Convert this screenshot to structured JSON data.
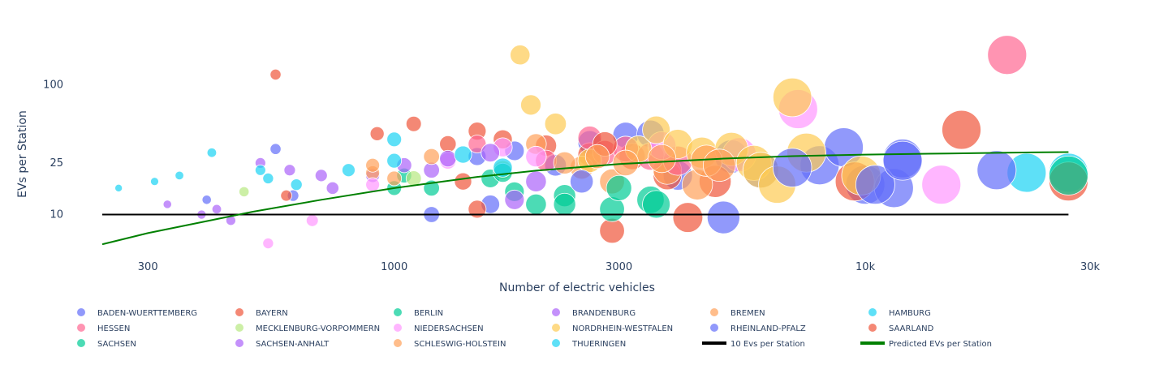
{
  "chart_data": {
    "type": "scatter",
    "title": "",
    "xlabel": "Number of electric vehicles",
    "ylabel": "EVs per Station",
    "x_scale": "log",
    "y_scale": "log",
    "xlim": [
      200,
      30000
    ],
    "ylim": [
      4.5,
      190
    ],
    "x_ticks": [
      {
        "value": 300,
        "label": "300"
      },
      {
        "value": 1000,
        "label": "1000"
      },
      {
        "value": 3000,
        "label": "3000"
      },
      {
        "value": 10000,
        "label": "10k"
      },
      {
        "value": 30000,
        "label": "30k"
      }
    ],
    "y_ticks": [
      {
        "value": 10,
        "label": "10"
      },
      {
        "value": 25,
        "label": "25"
      },
      {
        "value": 100,
        "label": "100"
      }
    ],
    "legend_placement": "bottom",
    "series": [
      {
        "name": "BADEN-WUERTTEMBERG",
        "color": "#636efa",
        "points": [
          [
            400,
            13
          ],
          [
            560,
            32
          ],
          [
            610,
            14
          ],
          [
            1500,
            28
          ],
          [
            1800,
            31
          ],
          [
            2200,
            24
          ],
          [
            2600,
            36
          ],
          [
            3100,
            41
          ],
          [
            3500,
            42
          ],
          [
            4000,
            20
          ],
          [
            5200,
            28
          ],
          [
            6000,
            22
          ],
          [
            8000,
            24
          ],
          [
            9000,
            33
          ],
          [
            10000,
            17
          ],
          [
            11500,
            16
          ],
          [
            12000,
            27
          ]
        ]
      },
      {
        "name": "BAYERN",
        "color": "#EF553B",
        "points": [
          [
            560,
            120
          ],
          [
            1100,
            50
          ],
          [
            1300,
            35
          ],
          [
            1400,
            18
          ],
          [
            1500,
            44
          ],
          [
            1700,
            38
          ],
          [
            2100,
            34
          ],
          [
            2600,
            29
          ],
          [
            2900,
            7.5
          ],
          [
            3200,
            28
          ],
          [
            3800,
            20
          ],
          [
            4200,
            9.5
          ],
          [
            4800,
            18
          ],
          [
            9500,
            18
          ],
          [
            16000,
            45
          ]
        ]
      },
      {
        "name": "BERLIN",
        "color": "#00cc96",
        "points": [
          [
            1000,
            16
          ],
          [
            1050,
            20
          ],
          [
            1600,
            19
          ],
          [
            1800,
            15
          ],
          [
            2000,
            12
          ],
          [
            2300,
            14
          ],
          [
            2900,
            11
          ],
          [
            3500,
            13
          ]
        ]
      },
      {
        "name": "BRANDENBURG",
        "color": "#ab63fa",
        "points": [
          [
            330,
            12
          ],
          [
            420,
            11
          ],
          [
            520,
            25
          ],
          [
            600,
            22
          ],
          [
            740,
            16
          ],
          [
            900,
            20
          ],
          [
            1200,
            22
          ],
          [
            1800,
            13
          ],
          [
            2000,
            18
          ]
        ]
      },
      {
        "name": "BREMEN",
        "color": "#FFA15A",
        "points": [
          [
            900,
            21
          ],
          [
            1000,
            19
          ],
          [
            2000,
            35
          ],
          [
            2500,
            23
          ],
          [
            2900,
            18
          ],
          [
            3800,
            22
          ],
          [
            4400,
            17
          ]
        ]
      },
      {
        "name": "HAMBURG",
        "color": "#19d3f3",
        "points": [
          [
            260,
            16
          ],
          [
            310,
            18
          ],
          [
            410,
            30
          ],
          [
            520,
            22
          ],
          [
            620,
            17
          ],
          [
            1000,
            38
          ],
          [
            22000,
            21
          ],
          [
            27000,
            21
          ]
        ]
      },
      {
        "name": "HESSEN",
        "color": "#FF6692",
        "points": [
          [
            1500,
            35
          ],
          [
            2100,
            26
          ],
          [
            2600,
            39
          ],
          [
            2800,
            30
          ],
          [
            3100,
            32
          ],
          [
            3500,
            28
          ],
          [
            4000,
            26
          ],
          [
            20000,
            170
          ]
        ]
      },
      {
        "name": "MECKLENBURG-VORPOMMERN",
        "color": "#B6E880",
        "points": [
          [
            480,
            15
          ],
          [
            1100,
            19
          ],
          [
            1700,
            22
          ]
        ]
      },
      {
        "name": "NIEDERSACHSEN",
        "color": "#FF97FF",
        "points": [
          [
            540,
            6
          ],
          [
            670,
            9
          ],
          [
            900,
            17
          ],
          [
            1300,
            26
          ],
          [
            1700,
            33
          ],
          [
            2000,
            28
          ],
          [
            3700,
            34
          ],
          [
            5400,
            29
          ],
          [
            7200,
            65
          ],
          [
            14500,
            17
          ]
        ]
      },
      {
        "name": "NORDRHEIN-WESTFALEN",
        "color": "#FECB52",
        "points": [
          [
            1850,
            170
          ],
          [
            1950,
            70
          ],
          [
            2200,
            50
          ],
          [
            2600,
            26
          ],
          [
            3300,
            32
          ],
          [
            3600,
            45
          ],
          [
            4000,
            35
          ],
          [
            4500,
            30
          ],
          [
            5200,
            32
          ],
          [
            5800,
            25
          ],
          [
            6000,
            22
          ],
          [
            6500,
            17
          ],
          [
            7000,
            80
          ],
          [
            7500,
            30
          ],
          [
            9800,
            20
          ]
        ]
      },
      {
        "name": "RHEINLAND-PFALZ",
        "color": "#636efa",
        "points": [
          [
            1200,
            10
          ],
          [
            1600,
            12
          ],
          [
            2500,
            18
          ],
          [
            5000,
            9.5
          ],
          [
            7000,
            23
          ],
          [
            10500,
            17
          ],
          [
            12000,
            26
          ],
          [
            19000,
            22
          ]
        ]
      },
      {
        "name": "SAARLAND",
        "color": "#EF553B",
        "points": [
          [
            590,
            14
          ],
          [
            920,
            42
          ],
          [
            1500,
            11
          ],
          [
            2800,
            35
          ],
          [
            27000,
            18
          ]
        ]
      },
      {
        "name": "SACHSEN",
        "color": "#00cc96",
        "points": [
          [
            1200,
            16
          ],
          [
            1700,
            21
          ],
          [
            2300,
            12
          ],
          [
            3000,
            16
          ],
          [
            3600,
            12
          ],
          [
            27000,
            20
          ]
        ]
      },
      {
        "name": "SACHSEN-ANHALT",
        "color": "#ab63fa",
        "points": [
          [
            390,
            10
          ],
          [
            450,
            9
          ],
          [
            700,
            20
          ],
          [
            1050,
            24
          ],
          [
            1300,
            27
          ],
          [
            1600,
            30
          ]
        ]
      },
      {
        "name": "SCHLESWIG-HOLSTEIN",
        "color": "#FFA15A",
        "points": [
          [
            900,
            24
          ],
          [
            1200,
            28
          ],
          [
            2300,
            25
          ],
          [
            2700,
            28
          ],
          [
            3100,
            25
          ],
          [
            3700,
            27
          ],
          [
            4600,
            26
          ],
          [
            4900,
            24
          ]
        ]
      },
      {
        "name": "THUERINGEN",
        "color": "#19d3f3",
        "points": [
          [
            350,
            20
          ],
          [
            540,
            19
          ],
          [
            800,
            22
          ],
          [
            1000,
            26
          ],
          [
            1400,
            29
          ],
          [
            1700,
            23
          ]
        ]
      }
    ],
    "lines": [
      {
        "name": "10 Evs per Station",
        "color": "#000000",
        "x": [
          240,
          27000
        ],
        "y": [
          10,
          10
        ]
      },
      {
        "name": "Predicted EVs per Station",
        "color": "#008000",
        "x": [
          240,
          300,
          400,
          500,
          700,
          1000,
          1500,
          2000,
          3000,
          5000,
          7000,
          10000,
          15000,
          20000,
          27000
        ],
        "y": [
          5.9,
          7.2,
          8.9,
          10.5,
          13,
          16,
          19.5,
          21.8,
          24.5,
          27,
          28.2,
          29,
          29.6,
          30,
          30.3
        ]
      }
    ]
  }
}
